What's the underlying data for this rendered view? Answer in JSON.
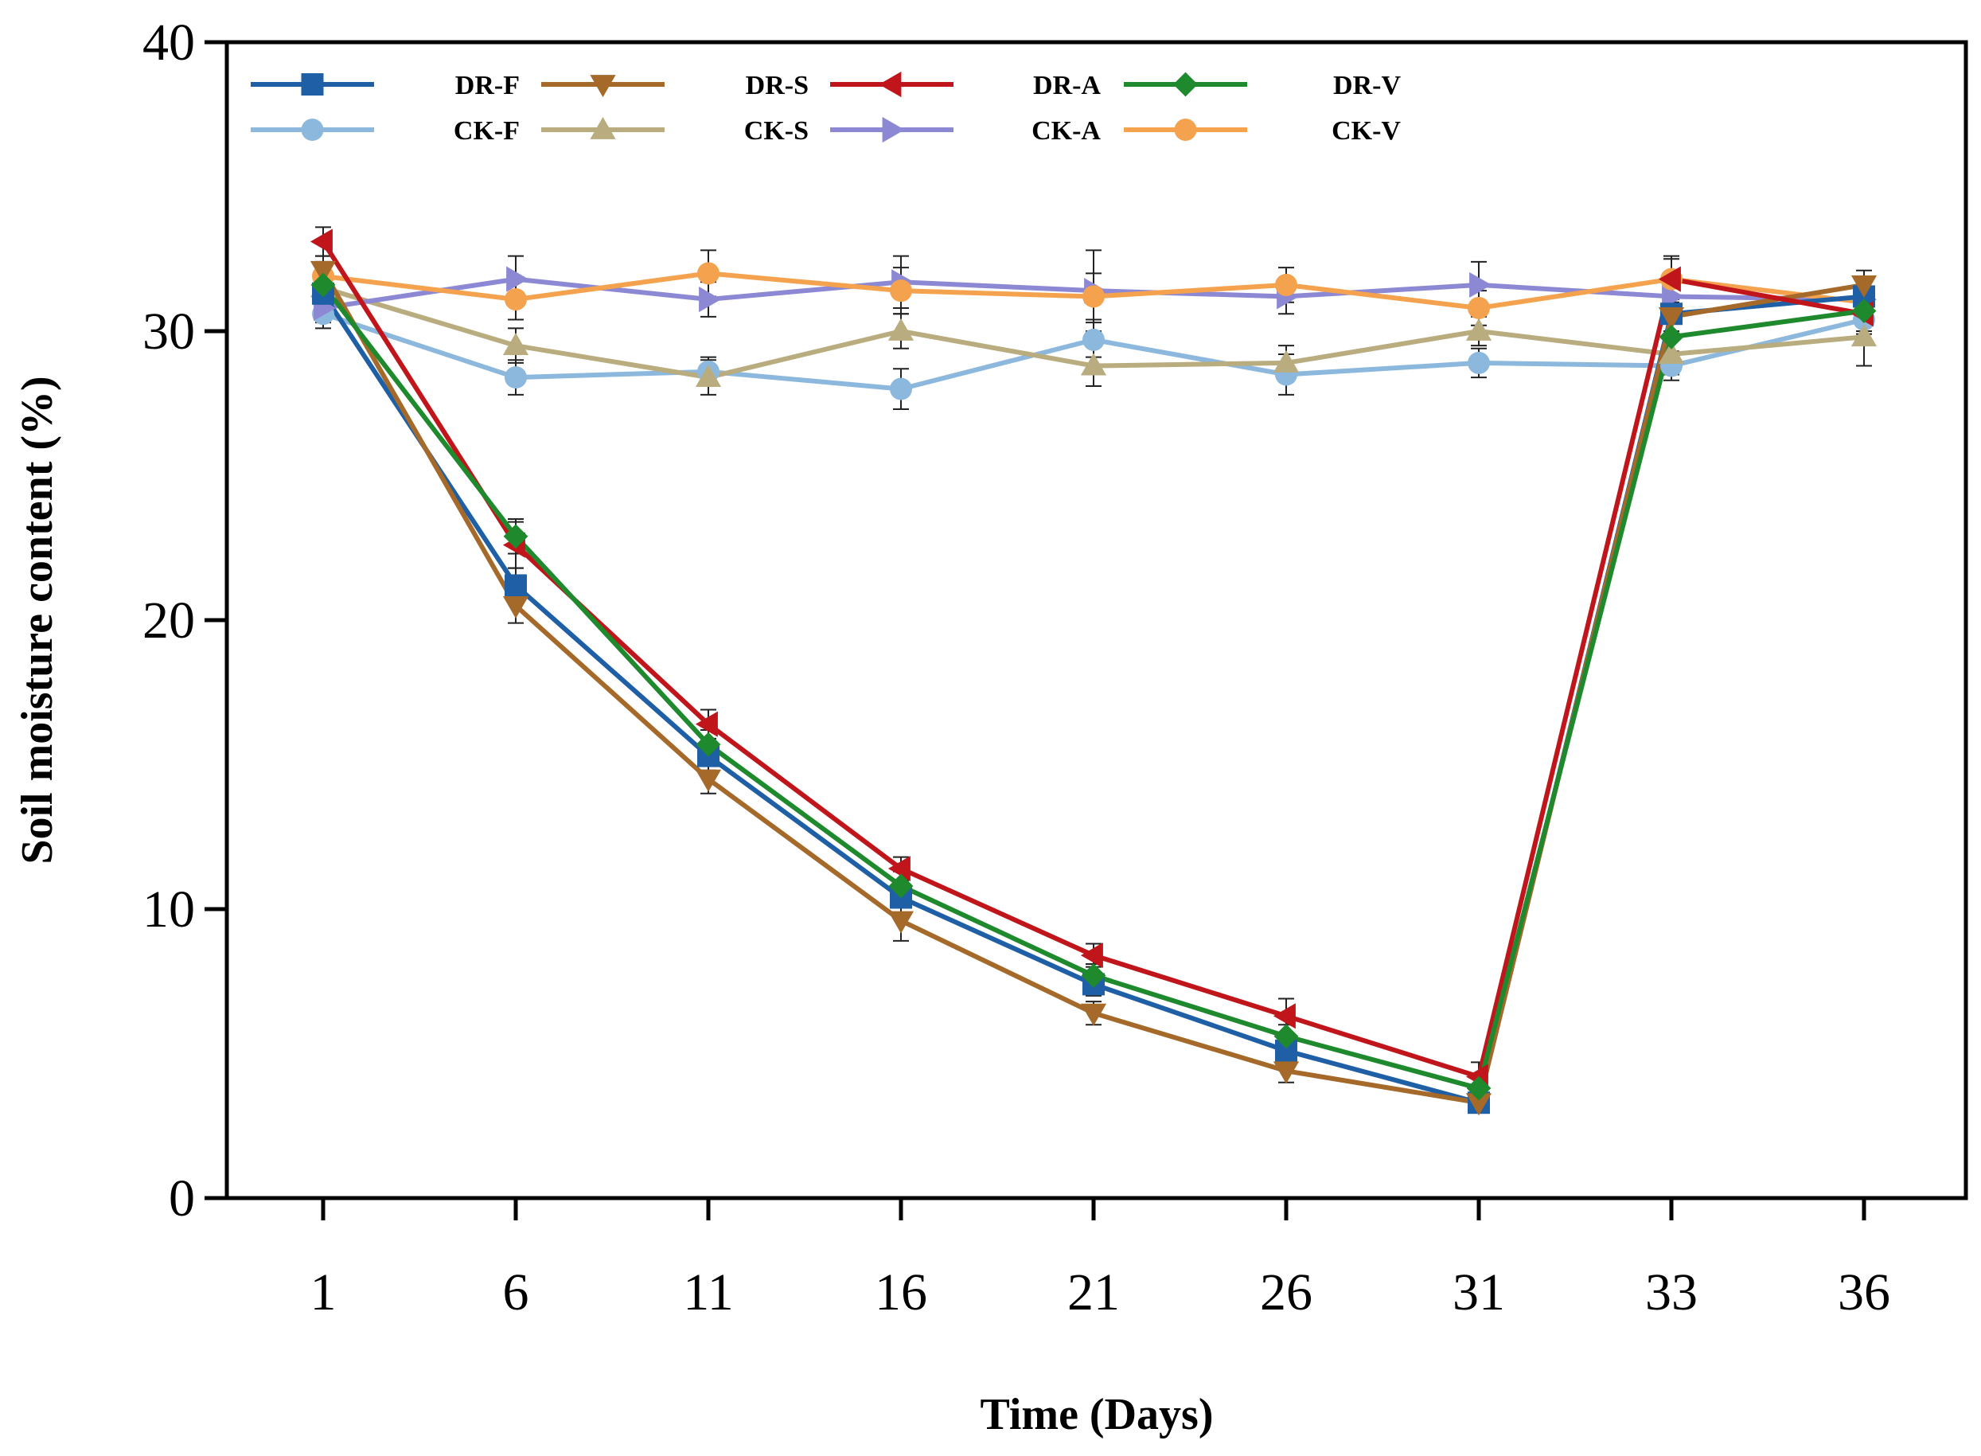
{
  "chart_data": {
    "type": "line",
    "title": "",
    "xlabel": "Time (Days)",
    "ylabel": "Soil moisture content (%)",
    "categories": [
      "1",
      "6",
      "11",
      "16",
      "21",
      "26",
      "31",
      "33",
      "36"
    ],
    "yticks": [
      "0",
      "10",
      "20",
      "30",
      "40"
    ],
    "ylim": [
      0,
      40
    ],
    "grid": false,
    "legend_position": "top-left",
    "series": [
      {
        "name": "DR-F",
        "color": "#1f5fa6",
        "marker": "square",
        "values": [
          31.3,
          21.2,
          15.3,
          10.4,
          7.4,
          5.1,
          3.3,
          30.6,
          31.2
        ],
        "errors": [
          0.6,
          0.6,
          0.5,
          0.6,
          0.4,
          0.4,
          0.3,
          0.6,
          0.5
        ]
      },
      {
        "name": "DR-S",
        "color": "#a5692a",
        "marker": "triangle-down",
        "values": [
          32.1,
          20.5,
          14.5,
          9.6,
          6.4,
          4.4,
          3.3,
          30.5,
          31.6
        ],
        "errors": [
          0.5,
          0.6,
          0.5,
          0.7,
          0.4,
          0.4,
          0.3,
          0.7,
          0.5
        ]
      },
      {
        "name": "DR-A",
        "color": "#c0161b",
        "marker": "triangle-left",
        "values": [
          33.1,
          22.6,
          16.4,
          11.4,
          8.4,
          6.3,
          4.2,
          31.8,
          30.6
        ],
        "errors": [
          0.5,
          0.8,
          0.5,
          0.4,
          0.4,
          0.6,
          0.5,
          0.7,
          0.6
        ]
      },
      {
        "name": "DR-V",
        "color": "#1e8a2d",
        "marker": "diamond",
        "values": [
          31.6,
          22.9,
          15.7,
          10.8,
          7.7,
          5.6,
          3.8,
          29.8,
          30.7
        ],
        "errors": [
          0.5,
          0.6,
          0.5,
          0.5,
          0.4,
          0.4,
          0.4,
          0.6,
          0.5
        ]
      },
      {
        "name": "CK-F",
        "color": "#8db8dd",
        "marker": "circle",
        "values": [
          30.6,
          28.4,
          28.6,
          28.0,
          29.7,
          28.5,
          28.9,
          28.8,
          30.4
        ],
        "errors": [
          0.5,
          0.6,
          0.5,
          0.7,
          0.6,
          0.7,
          0.5,
          0.5,
          0.5
        ]
      },
      {
        "name": "CK-S",
        "color": "#b9ac7e",
        "marker": "triangle-up",
        "values": [
          31.5,
          29.5,
          28.4,
          30.0,
          28.8,
          28.9,
          30.0,
          29.2,
          29.8
        ],
        "errors": [
          0.5,
          0.6,
          0.6,
          0.6,
          0.7,
          0.6,
          0.5,
          0.7,
          1.0
        ]
      },
      {
        "name": "CK-A",
        "color": "#8c88d4",
        "marker": "triangle-right",
        "values": [
          30.8,
          31.8,
          31.1,
          31.7,
          31.4,
          31.2,
          31.6,
          31.2,
          31.1
        ],
        "errors": [
          0.5,
          0.8,
          0.6,
          0.9,
          1.4,
          0.6,
          0.8,
          0.6,
          0.6
        ]
      },
      {
        "name": "CK-V",
        "color": "#f5a24f",
        "marker": "circle",
        "values": [
          31.9,
          31.1,
          32.0,
          31.4,
          31.2,
          31.6,
          30.8,
          31.8,
          31.0
        ],
        "errors": [
          0.5,
          0.7,
          0.8,
          0.8,
          0.8,
          0.6,
          0.6,
          0.8,
          0.5
        ]
      }
    ]
  }
}
